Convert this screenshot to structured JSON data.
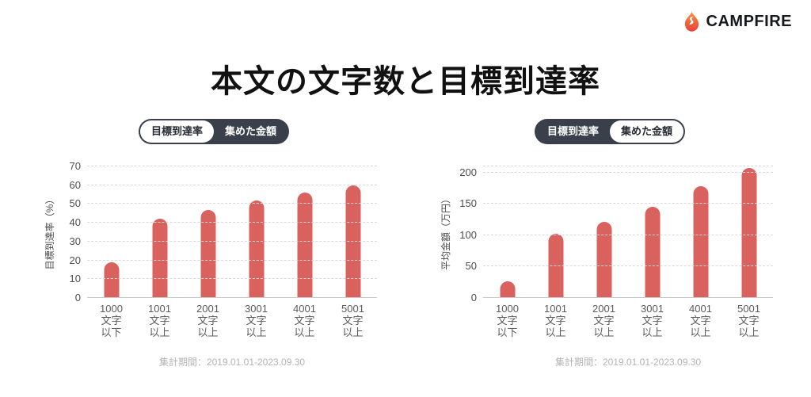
{
  "logo": {
    "text": "CAMPFIRE"
  },
  "title": "本文の文字数と目標到達率",
  "colors": {
    "bar": "#d9625f",
    "pill_bg": "#3a404b",
    "flame_top": "#f7913d",
    "flame_bottom": "#e8413c"
  },
  "chart_data": [
    {
      "type": "bar",
      "title": "目標到達率",
      "toggle": {
        "options": [
          "目標到達率",
          "集めた金額"
        ],
        "selected": "目標到達率"
      },
      "ylabel": "目標到達率（%）",
      "yticks": [
        0,
        10,
        20,
        30,
        40,
        50,
        60,
        70
      ],
      "ylim": [
        0,
        70
      ],
      "top_gridline": false,
      "grid": "dashed-horizontal",
      "legend": "none",
      "categories": [
        "1000文字以下",
        "1001文字以上",
        "2001文字以上",
        "3001文字以上",
        "4001文字以上",
        "5001文字以上"
      ],
      "category_lines": [
        [
          "1000",
          "文字",
          "以下"
        ],
        [
          "1001",
          "文字",
          "以上"
        ],
        [
          "2001",
          "文字",
          "以上"
        ],
        [
          "3001",
          "文字",
          "以上"
        ],
        [
          "4001",
          "文字",
          "以上"
        ],
        [
          "5001",
          "文字",
          "以上"
        ]
      ],
      "values": [
        19,
        42,
        47,
        52,
        56,
        60
      ],
      "caption": "集計期間：2019.01.01-2023.09.30"
    },
    {
      "type": "bar",
      "title": "集めた金額",
      "toggle": {
        "options": [
          "目標到達率",
          "集めた金額"
        ],
        "selected": "集めた金額"
      },
      "ylabel": "平均金額（万円）",
      "yticks": [
        0,
        50,
        100,
        150,
        200
      ],
      "ylim": [
        0,
        210
      ],
      "top_gridline": true,
      "grid": "dashed-horizontal",
      "legend": "none",
      "categories": [
        "1000文字以下",
        "1001文字以上",
        "2001文字以上",
        "3001文字以上",
        "4001文字以上",
        "5001文字以上"
      ],
      "category_lines": [
        [
          "1000",
          "文字",
          "以下"
        ],
        [
          "1001",
          "文字",
          "以上"
        ],
        [
          "2001",
          "文字",
          "以上"
        ],
        [
          "3001",
          "文字",
          "以上"
        ],
        [
          "4001",
          "文字",
          "以上"
        ],
        [
          "5001",
          "文字",
          "以上"
        ]
      ],
      "values": [
        27,
        103,
        122,
        146,
        178,
        207
      ],
      "caption": "集計期間：2019.01.01-2023.09.30"
    }
  ]
}
